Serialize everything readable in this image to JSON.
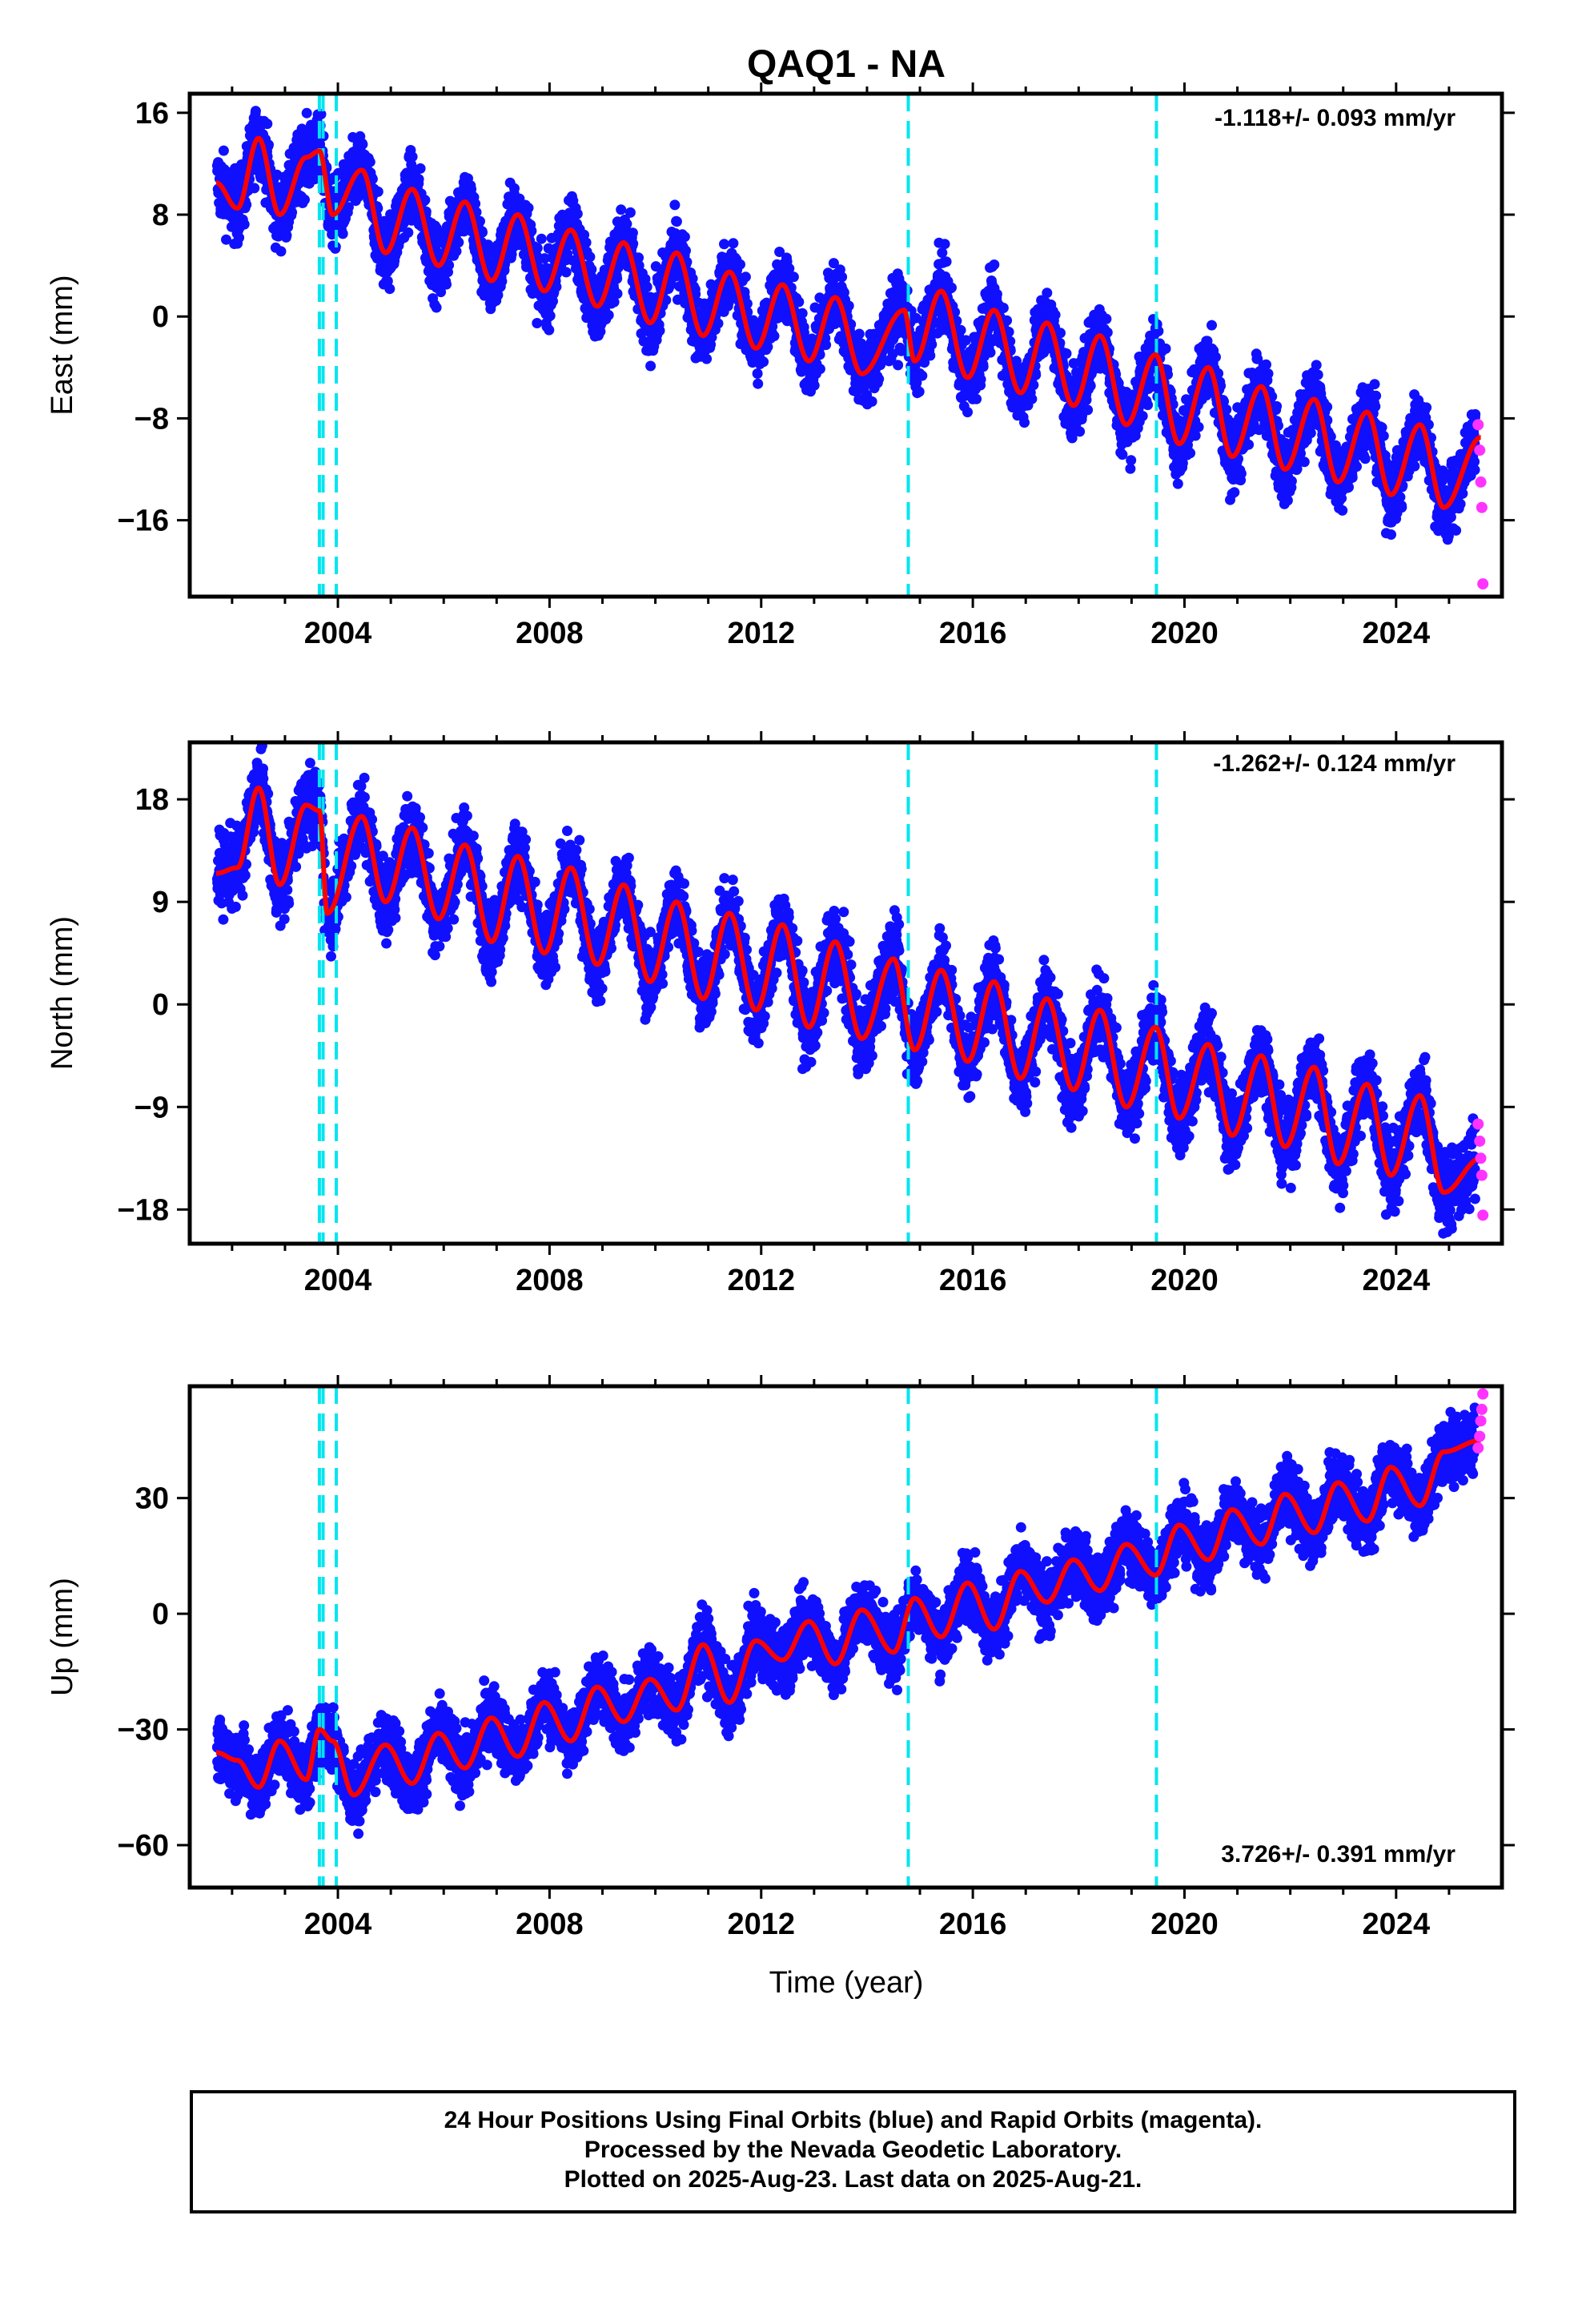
{
  "title": "QAQ1 - NA",
  "xlabel": "Time (year)",
  "footer": {
    "line1": "24 Hour Positions Using Final Orbits (blue) and Rapid Orbits (magenta).",
    "line2": "Processed by the Nevada Geodetic Laboratory.",
    "line3": "Plotted on 2025-Aug-23. Last data on 2025-Aug-21."
  },
  "colors": {
    "final_points": "#1010ff",
    "rapid_points": "#ff33ff",
    "model": "#ff0000",
    "breaks": "#00e5f0",
    "frame": "#000000"
  },
  "chart_data": [
    {
      "type": "scatter",
      "component": "East",
      "ylabel": "East (mm)",
      "rate_label": "-1.118+/- 0.093 mm/yr",
      "xlim": [
        2001.2,
        2026.0
      ],
      "ylim": [
        -22,
        17.5
      ],
      "xticks": [
        2004,
        2008,
        2012,
        2016,
        2020,
        2024
      ],
      "yticks": [
        16,
        8,
        0,
        -8,
        -16
      ],
      "breaks": [
        2003.65,
        2003.72,
        2003.97,
        2014.78,
        2019.47
      ],
      "model": {
        "x": [
          2001.7,
          2002.1,
          2002.5,
          2002.9,
          2003.4,
          2003.65,
          2003.9,
          2004.45,
          2004.9,
          2005.4,
          2005.9,
          2006.4,
          2006.9,
          2007.4,
          2007.9,
          2008.4,
          2008.9,
          2009.4,
          2009.9,
          2010.4,
          2010.9,
          2011.4,
          2011.9,
          2012.4,
          2012.9,
          2013.4,
          2013.9,
          2014.7,
          2014.9,
          2015.4,
          2015.9,
          2016.4,
          2016.9,
          2017.4,
          2017.9,
          2018.4,
          2018.9,
          2019.45,
          2019.9,
          2020.45,
          2020.9,
          2021.45,
          2021.9,
          2022.45,
          2022.9,
          2023.45,
          2023.9,
          2024.45,
          2024.9,
          2025.6
        ],
        "y": [
          10.5,
          8.5,
          14.0,
          8.0,
          12.5,
          13.0,
          8.0,
          11.5,
          5.0,
          10.0,
          4.0,
          9.0,
          2.8,
          8.0,
          2.0,
          6.8,
          0.8,
          5.8,
          -0.5,
          5.0,
          -1.5,
          3.5,
          -2.5,
          2.5,
          -3.5,
          1.5,
          -4.5,
          0.5,
          -3.5,
          2.0,
          -4.8,
          0.5,
          -6.0,
          -0.5,
          -7.0,
          -1.5,
          -8.5,
          -3.0,
          -10.0,
          -4.0,
          -11.0,
          -5.5,
          -12.0,
          -6.5,
          -13.0,
          -7.5,
          -14.0,
          -8.5,
          -15.0,
          -9.5
        ]
      },
      "final_points_note": "",
      "rapid_points": {
        "x": [
          2025.55,
          2025.58,
          2025.6,
          2025.62,
          2025.64
        ],
        "y": [
          -8.5,
          -10.5,
          -13.0,
          -15.0,
          -21.0
        ]
      }
    },
    {
      "type": "scatter",
      "component": "North",
      "ylabel": "North (mm)",
      "rate_label": "-1.262+/- 0.124 mm/yr",
      "xlim": [
        2001.2,
        2026.0
      ],
      "ylim": [
        -21,
        23
      ],
      "xticks": [
        2004,
        2008,
        2012,
        2016,
        2020,
        2024
      ],
      "yticks": [
        18,
        9,
        0,
        -9,
        -18
      ],
      "breaks": [
        2003.65,
        2003.72,
        2003.97,
        2014.78,
        2019.47
      ],
      "model": {
        "x": [
          2001.7,
          2002.1,
          2002.5,
          2002.9,
          2003.4,
          2003.65,
          2003.8,
          2004.45,
          2004.9,
          2005.4,
          2005.9,
          2006.4,
          2006.9,
          2007.4,
          2007.9,
          2008.4,
          2008.9,
          2009.4,
          2009.9,
          2010.4,
          2010.9,
          2011.4,
          2011.9,
          2012.4,
          2012.9,
          2013.4,
          2013.9,
          2014.5,
          2014.9,
          2015.4,
          2015.9,
          2016.4,
          2016.9,
          2017.4,
          2017.9,
          2018.4,
          2018.9,
          2019.45,
          2019.9,
          2020.45,
          2020.9,
          2021.45,
          2021.9,
          2022.45,
          2022.9,
          2023.45,
          2023.9,
          2024.45,
          2024.9,
          2025.6
        ],
        "y": [
          11.5,
          12.0,
          19.0,
          10.5,
          17.5,
          17.0,
          8.0,
          16.5,
          9.0,
          15.5,
          7.5,
          14.0,
          5.5,
          13.0,
          4.5,
          12.0,
          3.5,
          10.5,
          2.0,
          9.0,
          0.5,
          8.0,
          -0.5,
          7.0,
          -2.0,
          5.5,
          -3.0,
          4.0,
          -4.0,
          3.0,
          -5.0,
          2.0,
          -6.5,
          0.5,
          -7.5,
          -0.5,
          -9.0,
          -2.0,
          -10.0,
          -3.5,
          -11.5,
          -4.5,
          -12.5,
          -5.5,
          -14.0,
          -7.0,
          -15.0,
          -8.0,
          -16.5,
          -13.5
        ]
      },
      "rapid_points": {
        "x": [
          2025.55,
          2025.58,
          2025.6,
          2025.62,
          2025.64
        ],
        "y": [
          -10.5,
          -12.0,
          -13.5,
          -15.0,
          -18.5
        ]
      }
    },
    {
      "type": "scatter",
      "component": "Up",
      "ylabel": "Up (mm)",
      "rate_label": "3.726+/- 0.391 mm/yr",
      "xlim": [
        2001.2,
        2026.0
      ],
      "ylim": [
        -71,
        59
      ],
      "xticks": [
        2004,
        2008,
        2012,
        2016,
        2020,
        2024
      ],
      "yticks": [
        30,
        0,
        -30,
        -60
      ],
      "breaks": [
        2003.65,
        2003.72,
        2003.97,
        2014.78,
        2019.47
      ],
      "model": {
        "x": [
          2001.7,
          2002.1,
          2002.5,
          2002.9,
          2003.4,
          2003.65,
          2003.9,
          2004.3,
          2004.9,
          2005.4,
          2005.9,
          2006.4,
          2006.9,
          2007.4,
          2007.9,
          2008.4,
          2008.9,
          2009.4,
          2009.9,
          2010.4,
          2010.9,
          2011.4,
          2011.9,
          2012.4,
          2012.9,
          2013.4,
          2013.9,
          2014.5,
          2014.9,
          2015.4,
          2015.9,
          2016.4,
          2016.9,
          2017.4,
          2017.9,
          2018.4,
          2018.9,
          2019.45,
          2019.9,
          2020.45,
          2020.9,
          2021.45,
          2021.9,
          2022.45,
          2022.9,
          2023.45,
          2023.9,
          2024.45,
          2024.9,
          2025.6
        ],
        "y": [
          -36,
          -38,
          -45,
          -33,
          -43,
          -30,
          -33,
          -47,
          -34,
          -44,
          -31,
          -40,
          -27,
          -37,
          -23,
          -33,
          -19,
          -28,
          -17,
          -25,
          -8,
          -23,
          -7,
          -12,
          -2,
          -13,
          1,
          -10,
          4,
          -6,
          8,
          -4,
          11,
          3,
          14,
          6,
          18,
          10,
          23,
          14,
          27,
          18,
          31,
          21,
          34,
          24,
          38,
          28,
          42,
          45
        ]
      },
      "rapid_points": {
        "x": [
          2025.55,
          2025.58,
          2025.6,
          2025.62,
          2025.64
        ],
        "y": [
          43,
          46,
          50,
          53,
          57
        ]
      }
    }
  ]
}
